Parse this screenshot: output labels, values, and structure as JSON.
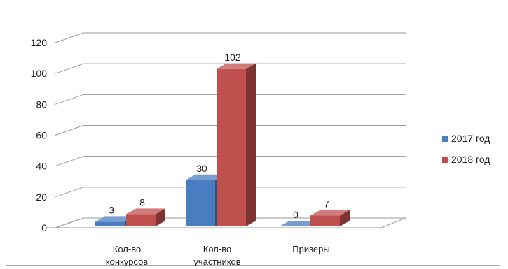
{
  "colors": {
    "series_2017": "#4a7cc2",
    "series_2018": "#c0504d"
  },
  "chart_data": {
    "type": "bar",
    "title": "",
    "xlabel": "",
    "ylabel": "",
    "ylim": [
      0,
      120
    ],
    "yticks": [
      0,
      20,
      40,
      60,
      80,
      100,
      120
    ],
    "categories": [
      [
        "Кол-во",
        "конкурсов"
      ],
      [
        "Кол-во",
        "участников"
      ],
      [
        "Призеры"
      ]
    ],
    "series": [
      {
        "name": "2017 год",
        "values": [
          3,
          30,
          0
        ]
      },
      {
        "name": "2018 год",
        "values": [
          8,
          102,
          7
        ]
      }
    ],
    "legend_position": "right",
    "grid": true,
    "style": "3d"
  }
}
